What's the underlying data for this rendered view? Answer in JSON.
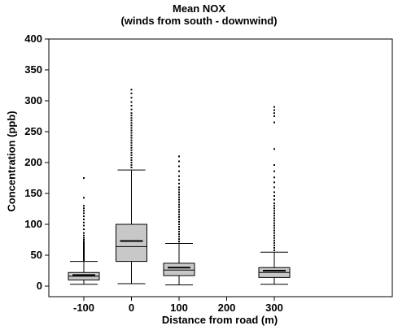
{
  "chart_data": {
    "type": "boxplot",
    "title": "Mean  NOX",
    "subtitle": "(winds from south - downwind)",
    "xlabel": "Distance from road (m)",
    "ylabel": "Concentration (ppb)",
    "ylim": [
      0,
      400
    ],
    "yticks": [
      0,
      50,
      100,
      150,
      200,
      250,
      300,
      350,
      400
    ],
    "xlim": [
      -160,
      360
    ],
    "xticks": [
      -100,
      0,
      100,
      200,
      300
    ],
    "x_tick_labels": [
      "-100",
      "0",
      "100",
      "200",
      "300"
    ],
    "y_tick_labels": [
      "0",
      "50",
      "100",
      "150",
      "200",
      "250",
      "300",
      "350",
      "400"
    ],
    "grid": false,
    "box_color": "#c8c8c8",
    "boxes": [
      {
        "x": -100,
        "whisker_low": 3,
        "q1": 10,
        "median": 16,
        "mean": 18,
        "q3": 22,
        "whisker_high": 40,
        "outliers": [
          42,
          44,
          46,
          48,
          50,
          52,
          54,
          56,
          58,
          60,
          62,
          64,
          66,
          68,
          70,
          72,
          75,
          78,
          82,
          86,
          92,
          98,
          103,
          108,
          113,
          118,
          122,
          126,
          130,
          143,
          175
        ]
      },
      {
        "x": 0,
        "whisker_low": 4,
        "q1": 40,
        "median": 64,
        "mean": 73,
        "q3": 100,
        "whisker_high": 188,
        "outliers": [
          192,
          196,
          200,
          204,
          208,
          212,
          216,
          220,
          224,
          228,
          232,
          236,
          240,
          244,
          248,
          252,
          256,
          260,
          264,
          268,
          272,
          276,
          280,
          286,
          292,
          298,
          305,
          312,
          318
        ]
      },
      {
        "x": 100,
        "whisker_low": 2,
        "q1": 17,
        "median": 26,
        "mean": 30,
        "q3": 37,
        "whisker_high": 69,
        "outliers": [
          72,
          76,
          80,
          84,
          88,
          92,
          96,
          100,
          104,
          108,
          112,
          116,
          120,
          124,
          128,
          132,
          136,
          140,
          144,
          148,
          152,
          156,
          160,
          166,
          172,
          178,
          186,
          194,
          202,
          210
        ]
      },
      {
        "x": 300,
        "whisker_low": 3,
        "q1": 14,
        "median": 22,
        "mean": 25,
        "q3": 30,
        "whisker_high": 55,
        "outliers": [
          58,
          62,
          66,
          70,
          74,
          78,
          82,
          86,
          90,
          94,
          98,
          102,
          106,
          110,
          114,
          118,
          122,
          126,
          130,
          134,
          140,
          146,
          152,
          160,
          168,
          176,
          186,
          196,
          222,
          265,
          275,
          280,
          285,
          290
        ]
      }
    ]
  }
}
